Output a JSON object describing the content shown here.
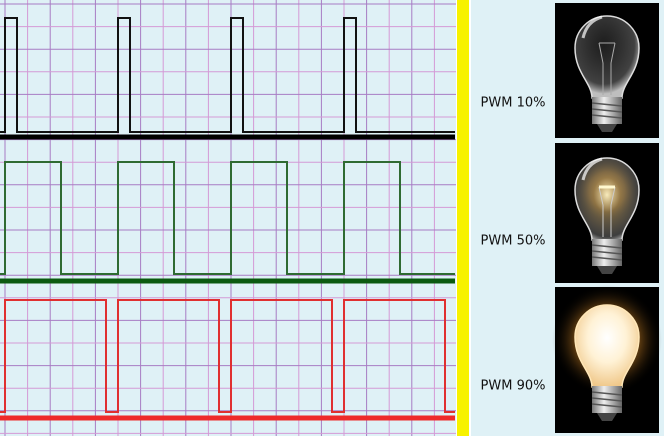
{
  "panels": [
    {
      "label": "PWM 10%"
    },
    {
      "label": "PWM 50%"
    },
    {
      "label": "PWM 90%"
    }
  ]
}
